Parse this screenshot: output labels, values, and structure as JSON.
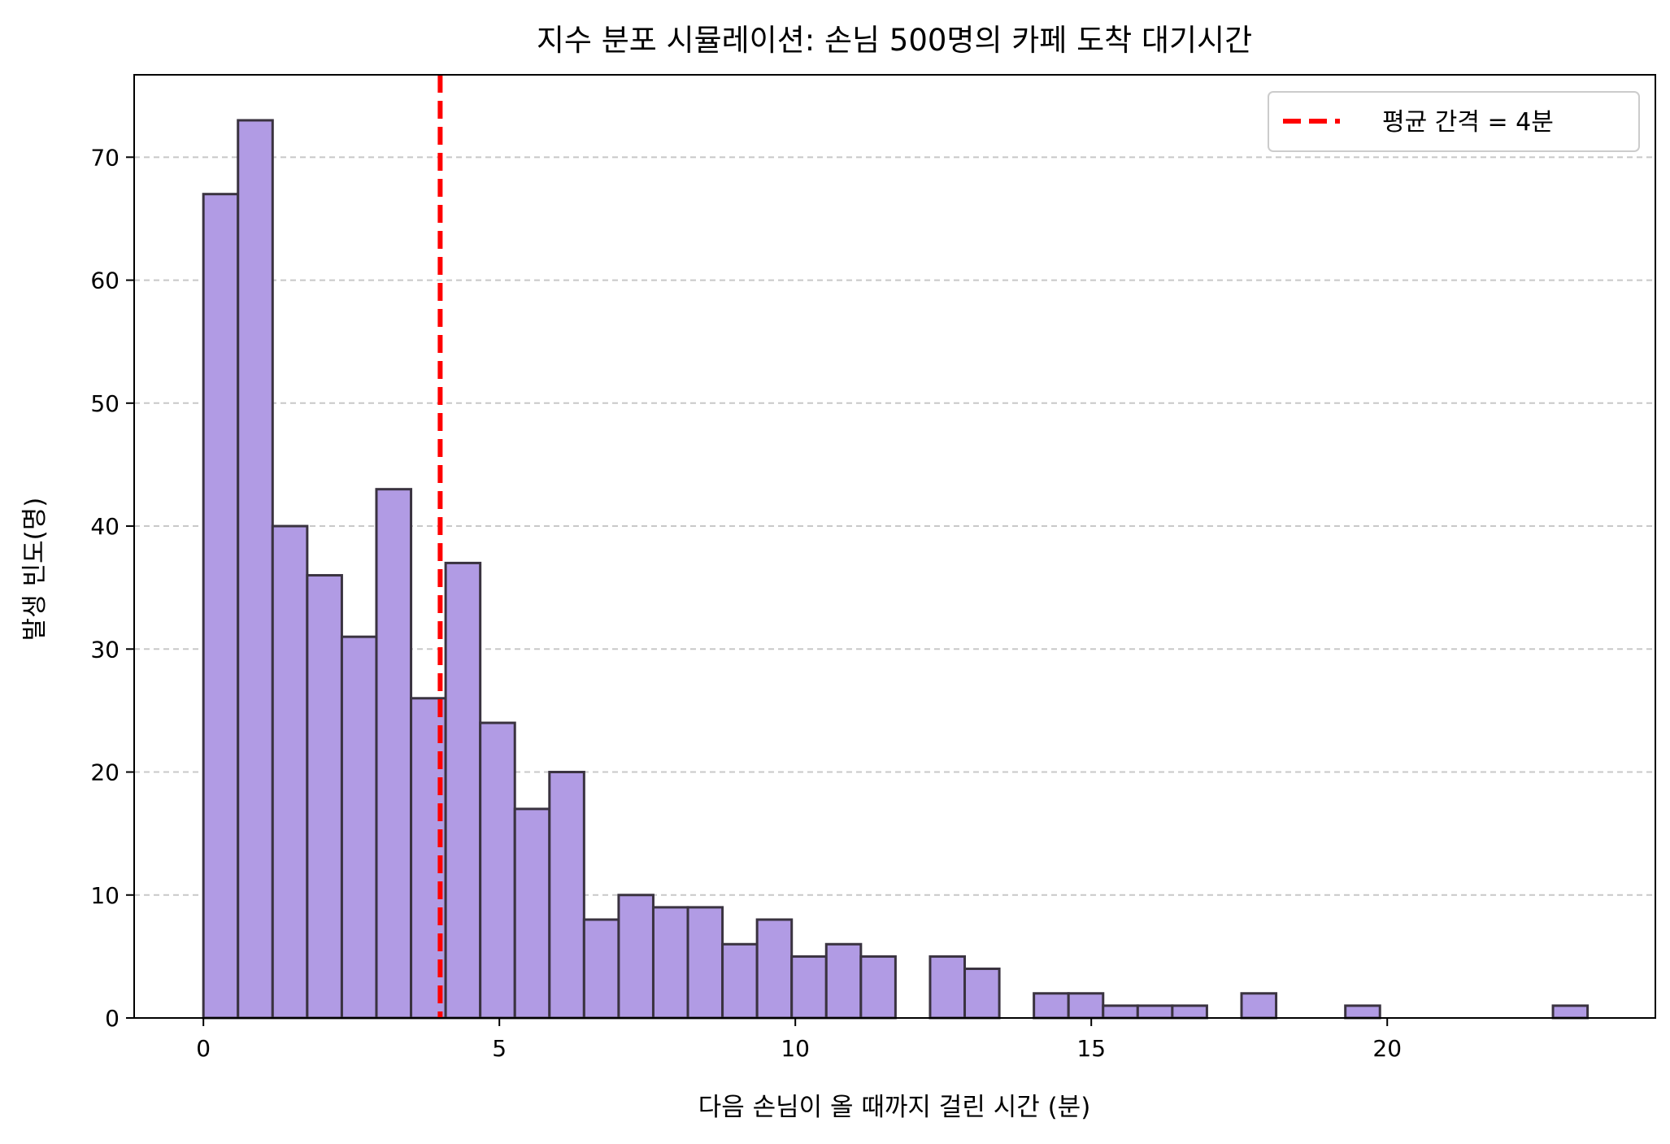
{
  "chart_data": {
    "type": "bar",
    "title": "지수 분포 시뮬레이션: 손님 500명의 카페 도착 대기시간",
    "xlabel": "다음 손님이 올 때까지 걸린 시간 (분)",
    "ylabel": "발생 빈도(명)",
    "xlim": [
      -1.17,
      24.53
    ],
    "ylim": [
      0,
      76.7
    ],
    "xticks": [
      0,
      5,
      10,
      15,
      20
    ],
    "yticks": [
      0,
      10,
      20,
      30,
      40,
      50,
      60,
      70
    ],
    "grid": {
      "axis": "y",
      "style": "dashed",
      "color": "#c8c8c8"
    },
    "bin_edges": [
      0,
      0.5846,
      1.1692,
      1.7538,
      2.3385,
      2.9231,
      3.5077,
      4.0923,
      4.6769,
      5.2615,
      5.8462,
      6.4308,
      7.0154,
      7.6,
      8.1846,
      8.7692,
      9.3538,
      9.9385,
      10.5231,
      11.1077,
      11.6923,
      12.2769,
      12.8615,
      13.4462,
      14.0308,
      14.6154,
      15.2,
      15.7846,
      16.3692,
      16.9538,
      17.5385,
      18.1231,
      18.7077,
      19.2923,
      19.8769,
      20.4615,
      21.0462,
      21.6308,
      22.2154,
      22.8,
      23.3846
    ],
    "counts": [
      67,
      73,
      40,
      36,
      31,
      43,
      26,
      37,
      24,
      17,
      20,
      8,
      10,
      9,
      9,
      6,
      8,
      5,
      6,
      5,
      0,
      5,
      4,
      0,
      2,
      2,
      1,
      1,
      1,
      0,
      2,
      0,
      0,
      1,
      0,
      0,
      0,
      0,
      0,
      1
    ],
    "bar_color": "#b19be4",
    "bar_edge_color": "#3a3340",
    "mean_line": {
      "x": 4,
      "label": "평균 간격 = 4분",
      "color": "#ff0000",
      "style": "dashed"
    },
    "legend": {
      "position": "top-right",
      "entries": [
        "평균 간격 = 4분"
      ]
    }
  }
}
